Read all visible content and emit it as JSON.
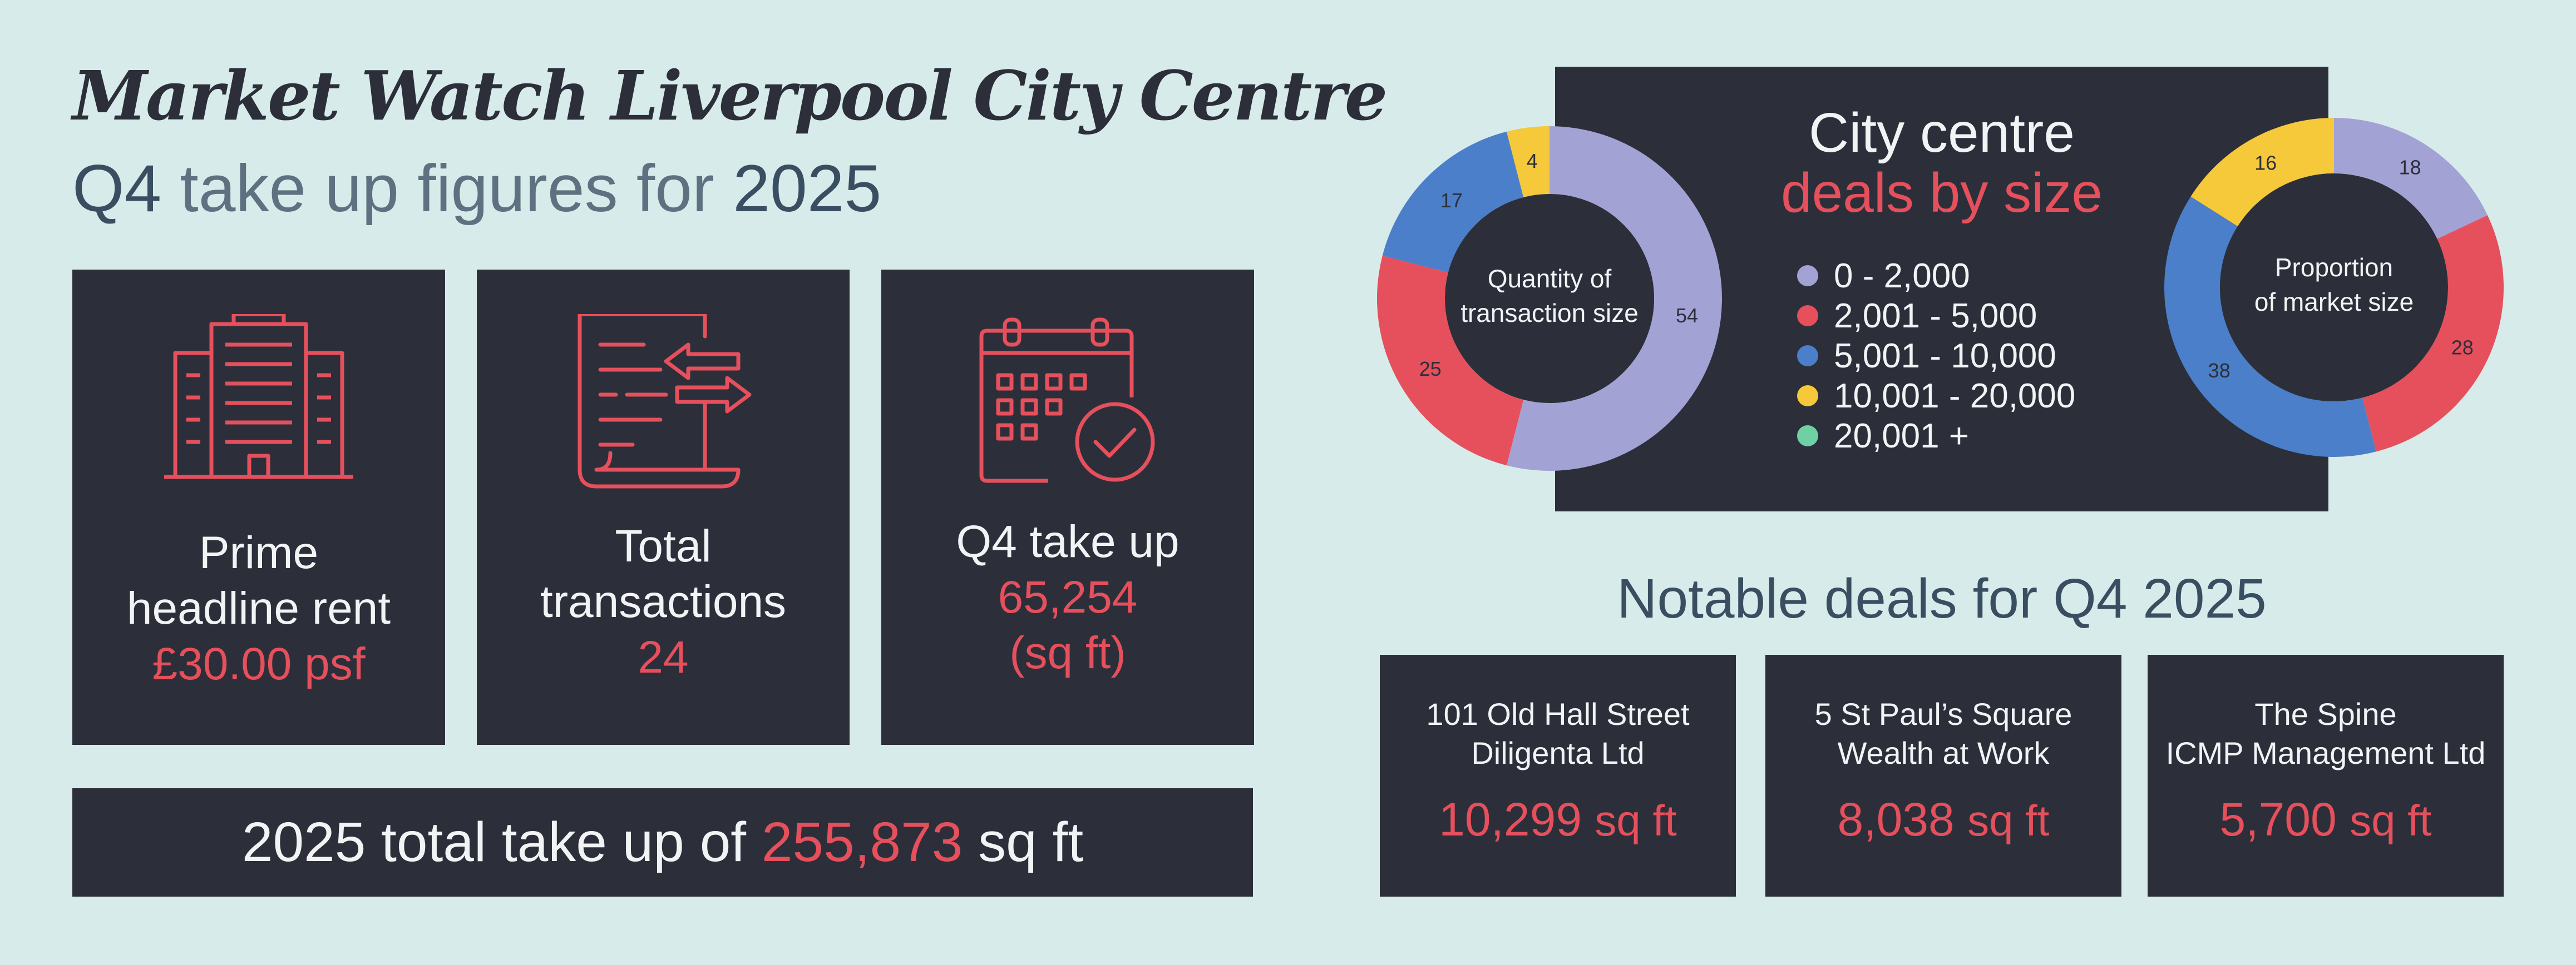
{
  "header": {
    "title": "Market Watch Liverpool City Centre",
    "subtitle_q": "Q4",
    "subtitle_mid": "take up figures for",
    "subtitle_year": "2025"
  },
  "stats": [
    {
      "icon": "office-building-icon",
      "line1": "Prime",
      "line2": "headline rent",
      "value": "£30.00 psf"
    },
    {
      "icon": "transactions-document-icon",
      "line1": "Total",
      "line2": "transactions",
      "value": "24"
    },
    {
      "icon": "calendar-check-icon",
      "line1": "Q4 take up",
      "line2": "65,254",
      "value": "(sq ft)"
    }
  ],
  "total": {
    "prefix": "2025 total take up of",
    "value": "255,873",
    "suffix": "sq ft"
  },
  "size_panel": {
    "line1": "City centre",
    "line2": "deals by size"
  },
  "colors": {
    "cat1": "#a3a2d4",
    "cat2": "#e5505c",
    "cat3": "#4b7fc9",
    "cat4": "#f5c93a",
    "cat5": "#6fd0a6",
    "dark": "#2c2f3a",
    "accent": "#e5505c"
  },
  "chart_data": [
    {
      "type": "pie",
      "title": "Quantity of transaction size",
      "title_lines": [
        "Quantity of",
        "transaction size"
      ],
      "categories": [
        "0 - 2,000",
        "2,001 - 5,000",
        "5,001 - 10,000",
        "10,001 - 20,000",
        "20,001 +"
      ],
      "values": [
        54,
        25,
        17,
        4,
        0
      ],
      "legend": "center panel"
    },
    {
      "type": "pie",
      "title": "Proportion of market size",
      "title_lines": [
        "Proportion",
        "of market size"
      ],
      "categories": [
        "0 - 2,000",
        "2,001 - 5,000",
        "5,001 - 10,000",
        "10,001 - 20,000",
        "20,001 +"
      ],
      "values": [
        18,
        28,
        38,
        16,
        0
      ],
      "legend": "center panel"
    }
  ],
  "deals": {
    "title": "Notable deals for Q4 2025",
    "items": [
      {
        "address": "101 Old Hall Street",
        "tenant": "Diligenta Ltd",
        "size": "10,299",
        "unit": "sq ft"
      },
      {
        "address": "5 St Paul’s Square",
        "tenant": "Wealth at Work",
        "size": "8,038",
        "unit": "sq ft"
      },
      {
        "address": "The Spine",
        "tenant": "ICMP Management Ltd",
        "size": "5,700",
        "unit": "sq ft"
      }
    ]
  }
}
